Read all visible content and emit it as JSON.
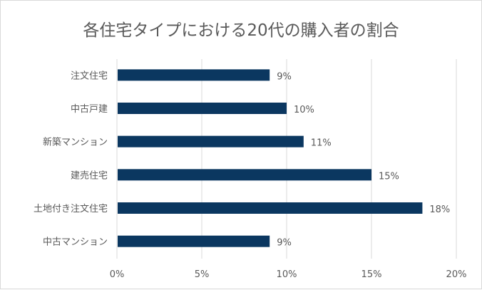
{
  "chart_data": {
    "type": "bar",
    "orientation": "horizontal",
    "title": "各住宅タイプにおける20代の購入者の割合",
    "categories": [
      "注文住宅",
      "中古戸建",
      "新築マンション",
      "建売住宅",
      "土地付き注文住宅",
      "中古マンション"
    ],
    "values": [
      9,
      10,
      11,
      15,
      18,
      9
    ],
    "data_labels": [
      "9%",
      "10%",
      "11%",
      "15%",
      "18%",
      "9%"
    ],
    "xlim": [
      0,
      20
    ],
    "x_ticks": [
      "0%",
      "5%",
      "10%",
      "15%",
      "20%"
    ],
    "grid": "vertical",
    "legend": "none",
    "colors": {
      "bar": "#0b3760",
      "grid": "#d9d9d9",
      "text": "#595959"
    }
  }
}
